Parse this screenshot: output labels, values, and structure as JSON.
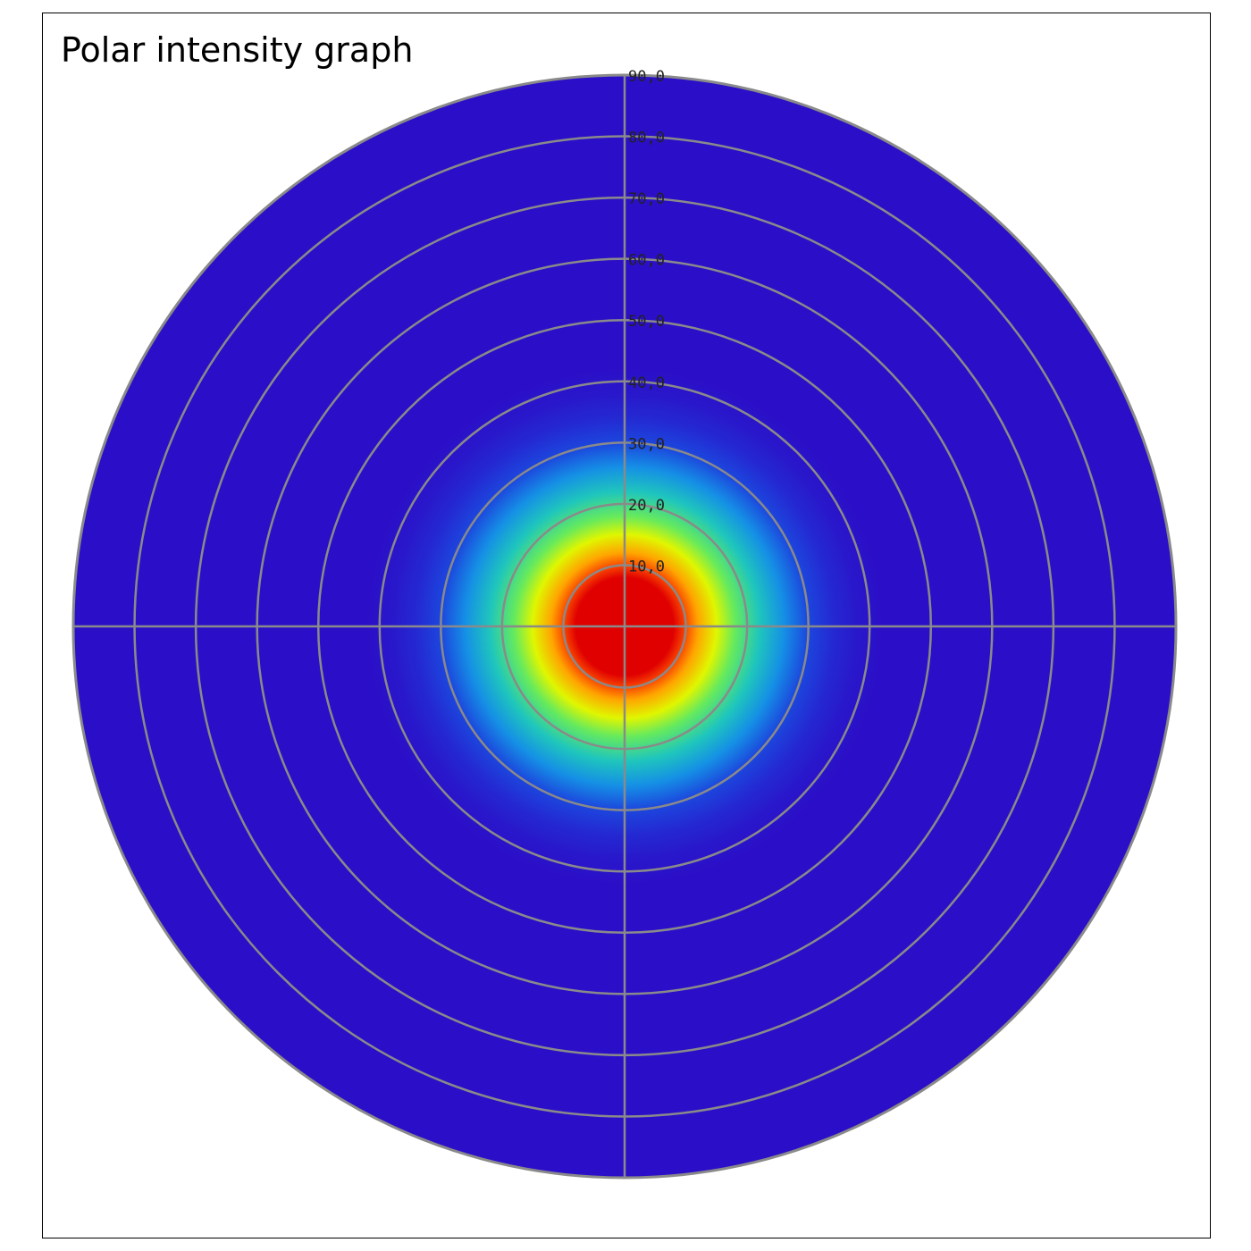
{
  "chart_data": {
    "type": "heatmap",
    "title": "Polar intensity graph",
    "coordinate_system": "polar",
    "radial_axis": {
      "range": [
        0,
        90
      ],
      "ticks": [
        10,
        20,
        30,
        40,
        50,
        60,
        70,
        80,
        90
      ],
      "tick_labels": [
        "10,0",
        "20,0",
        "30,0",
        "40,0",
        "50,0",
        "60,0",
        "70,0",
        "80,0",
        "90,0"
      ]
    },
    "grid": true,
    "crosshair_axes": true,
    "grid_color": "#8a8a8a",
    "colormap": {
      "stops": [
        {
          "value": 0.0,
          "color": "#2b0fc8"
        },
        {
          "value": 0.3,
          "color": "#1a4fe0"
        },
        {
          "value": 0.45,
          "color": "#12b0e8"
        },
        {
          "value": 0.6,
          "color": "#2ee08a"
        },
        {
          "value": 0.72,
          "color": "#d8ff00"
        },
        {
          "value": 0.82,
          "color": "#ffd000"
        },
        {
          "value": 0.9,
          "color": "#ff5a00"
        },
        {
          "value": 1.0,
          "color": "#e00000"
        }
      ]
    },
    "intensity_profile": [
      {
        "angle": 0,
        "intensity": 1.0
      },
      {
        "angle": 8,
        "intensity": 1.0
      },
      {
        "angle": 10,
        "intensity": 0.92
      },
      {
        "angle": 12,
        "intensity": 0.85
      },
      {
        "angle": 15,
        "intensity": 0.74
      },
      {
        "angle": 18,
        "intensity": 0.64
      },
      {
        "angle": 22,
        "intensity": 0.52
      },
      {
        "angle": 26,
        "intensity": 0.4
      },
      {
        "angle": 30,
        "intensity": 0.26
      },
      {
        "angle": 34,
        "intensity": 0.12
      },
      {
        "angle": 38,
        "intensity": 0.04
      },
      {
        "angle": 42,
        "intensity": 0.0
      },
      {
        "angle": 90,
        "intensity": 0.0
      }
    ]
  }
}
